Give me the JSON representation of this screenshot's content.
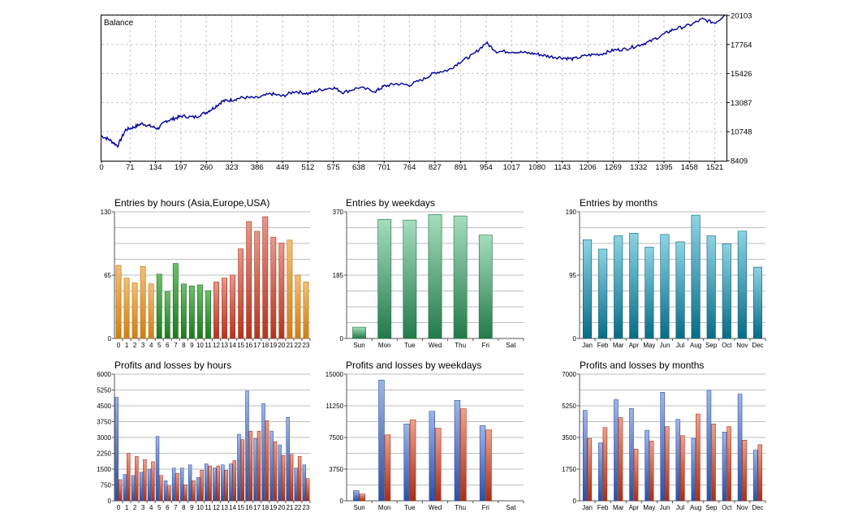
{
  "balance": {
    "title": "Balance",
    "x_ticks": [
      "0",
      "71",
      "134",
      "197",
      "260",
      "323",
      "386",
      "449",
      "512",
      "575",
      "638",
      "701",
      "764",
      "827",
      "891",
      "954",
      "1017",
      "1080",
      "1143",
      "1206",
      "1269",
      "1332",
      "1395",
      "1458",
      "1521"
    ],
    "y_ticks": [
      "8409",
      "10748",
      "13087",
      "15426",
      "17764",
      "20103"
    ],
    "chart_data": {
      "type": "line",
      "title": "Balance",
      "xlim": [
        0,
        1550
      ],
      "ylim": [
        8409,
        20103
      ],
      "x": [
        0,
        20,
        40,
        60,
        80,
        100,
        120,
        140,
        160,
        180,
        200,
        230,
        260,
        280,
        300,
        323,
        350,
        386,
        420,
        449,
        480,
        512,
        540,
        575,
        600,
        638,
        680,
        701,
        730,
        764,
        800,
        827,
        860,
        891,
        920,
        954,
        980,
        1017,
        1050,
        1080,
        1110,
        1143,
        1170,
        1206,
        1240,
        1269,
        1300,
        1332,
        1360,
        1395,
        1420,
        1458,
        1490,
        1521,
        1545
      ],
      "y": [
        10400,
        10100,
        9600,
        10900,
        11100,
        11400,
        11200,
        11000,
        11600,
        11800,
        12000,
        11900,
        12300,
        12700,
        13200,
        13300,
        13500,
        13450,
        13800,
        13600,
        14000,
        13800,
        14100,
        14300,
        13900,
        14300,
        14000,
        14400,
        14600,
        14500,
        15000,
        15500,
        15700,
        16400,
        16900,
        17900,
        17200,
        17200,
        17100,
        17000,
        16800,
        16700,
        16600,
        16900,
        17000,
        17300,
        17400,
        17700,
        18000,
        18600,
        19000,
        19300,
        19800,
        19500,
        20100
      ]
    }
  },
  "entries_hours": {
    "title": "Entries by hours (Asia,Europe,USA)",
    "y_ticks": [
      "0",
      "65",
      "130"
    ],
    "chart_data": {
      "type": "bar",
      "title": "Entries by hours (Asia,Europe,USA)",
      "ylim": [
        0,
        130
      ],
      "categories": [
        "0",
        "1",
        "2",
        "3",
        "4",
        "5",
        "6",
        "7",
        "8",
        "9",
        "10",
        "11",
        "12",
        "13",
        "14",
        "15",
        "16",
        "17",
        "18",
        "19",
        "20",
        "21",
        "22",
        "23"
      ],
      "values": [
        75,
        62,
        57,
        74,
        56,
        66,
        48,
        77,
        56,
        54,
        55,
        49,
        58,
        62,
        65,
        92,
        120,
        110,
        125,
        104,
        98,
        101,
        65,
        58
      ]
    }
  },
  "entries_weekdays": {
    "title": "Entries by weekdays",
    "y_ticks": [
      "0",
      "185",
      "370"
    ],
    "chart_data": {
      "type": "bar",
      "title": "Entries by weekdays",
      "ylim": [
        0,
        370
      ],
      "categories": [
        "Sun",
        "Mon",
        "Tue",
        "Wed",
        "Thu",
        "Fri",
        "Sat"
      ],
      "values": [
        33,
        348,
        346,
        362,
        358,
        302,
        0
      ]
    }
  },
  "entries_months": {
    "title": "Entries by months",
    "y_ticks": [
      "0",
      "95",
      "190"
    ],
    "chart_data": {
      "type": "bar",
      "title": "Entries by months",
      "ylim": [
        0,
        190
      ],
      "categories": [
        "Jan",
        "Feb",
        "Mar",
        "Apr",
        "May",
        "Jun",
        "Jul",
        "Aug",
        "Sep",
        "Oct",
        "Nov",
        "Dec"
      ],
      "values": [
        148,
        134,
        154,
        158,
        137,
        156,
        145,
        185,
        154,
        142,
        161,
        107
      ]
    }
  },
  "pl_hours": {
    "title": "Profits and losses by hours",
    "y_ticks": [
      "0",
      "750",
      "1500",
      "2250",
      "3000",
      "3750",
      "4500",
      "5250",
      "6000"
    ],
    "chart_data": {
      "type": "bar",
      "title": "Profits and losses by hours",
      "ylim": [
        0,
        6000
      ],
      "categories": [
        "0",
        "1",
        "2",
        "3",
        "4",
        "5",
        "6",
        "7",
        "8",
        "9",
        "10",
        "11",
        "12",
        "13",
        "14",
        "15",
        "16",
        "17",
        "18",
        "19",
        "20",
        "21",
        "22",
        "23"
      ],
      "series": [
        {
          "values": [
            4900,
            1250,
            1200,
            1350,
            1500,
            3050,
            950,
            1550,
            1550,
            1700,
            1100,
            1750,
            1550,
            1700,
            1750,
            3150,
            5200,
            2950,
            4600,
            3300,
            2650,
            3950,
            1550,
            1700
          ]
        },
        {
          "values": [
            1000,
            2250,
            2100,
            1950,
            1850,
            1200,
            700,
            1300,
            750,
            950,
            1450,
            1650,
            1650,
            1450,
            1900,
            2900,
            3300,
            3300,
            3800,
            2800,
            2150,
            2200,
            2100,
            1050
          ]
        }
      ]
    }
  },
  "pl_weekdays": {
    "title": "Profits and losses by weekdays",
    "y_ticks": [
      "0",
      "3750",
      "7500",
      "11250",
      "15000"
    ],
    "chart_data": {
      "type": "bar",
      "title": "Profits and losses by weekdays",
      "ylim": [
        0,
        15000
      ],
      "categories": [
        "Sun",
        "Mon",
        "Tue",
        "Wed",
        "Thu",
        "Fri",
        "Sat"
      ],
      "series": [
        {
          "values": [
            1200,
            14300,
            9100,
            10600,
            11900,
            8900,
            0
          ]
        },
        {
          "values": [
            800,
            7800,
            9600,
            8600,
            10900,
            8400,
            0
          ]
        }
      ]
    }
  },
  "pl_months": {
    "title": "Profits and losses by months",
    "y_ticks": [
      "0",
      "1750",
      "3500",
      "5250",
      "7000"
    ],
    "chart_data": {
      "type": "bar",
      "title": "Profits and losses by months",
      "ylim": [
        0,
        7000
      ],
      "categories": [
        "Jan",
        "Feb",
        "Mar",
        "Apr",
        "May",
        "Jun",
        "Jul",
        "Aug",
        "Sep",
        "Oct",
        "Nov",
        "Dec"
      ],
      "series": [
        {
          "values": [
            5000,
            3200,
            5600,
            5100,
            3900,
            6000,
            4500,
            3450,
            6100,
            3800,
            5900,
            2800
          ]
        },
        {
          "values": [
            3450,
            4050,
            4600,
            2850,
            3300,
            4100,
            3600,
            4800,
            4250,
            4100,
            3350,
            3100
          ]
        }
      ]
    }
  },
  "colors": {
    "balance_line": "#00009a",
    "grid": "#c8c8c8",
    "axis": "#000000",
    "asia_bar": "#e59a2a",
    "europe_bar": "#3f9a3f",
    "usa_bar": "#cc5a44",
    "weekday_bar": "#4fb27c",
    "month_bar": "#2a9bb6",
    "profit_bar": "#5a7ec8",
    "loss_bar": "#d0543a"
  }
}
